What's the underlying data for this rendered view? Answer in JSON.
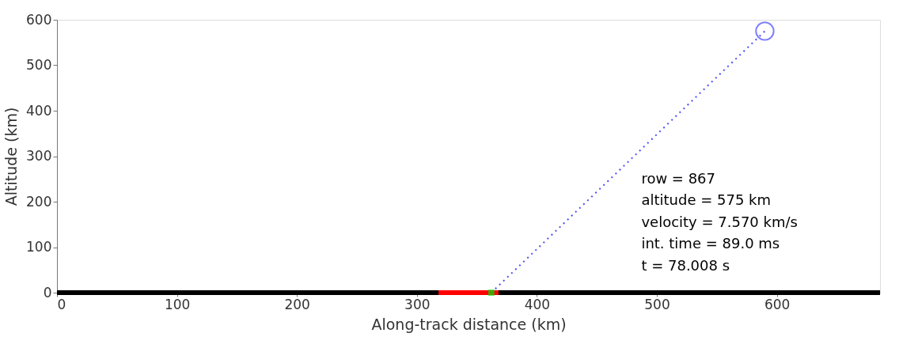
{
  "chart_data": {
    "type": "line",
    "xlabel": "Along-track distance (km)",
    "ylabel": "Altitude (km)",
    "xlim": [
      0,
      686
    ],
    "ylim": [
      0,
      600
    ],
    "xticks": [
      0,
      100,
      200,
      300,
      400,
      500,
      600
    ],
    "yticks": [
      0,
      100,
      200,
      300,
      400,
      500,
      600
    ],
    "grid": false,
    "legend": false,
    "series": [
      {
        "color": "#000000",
        "x": [
          0,
          686
        ],
        "values": [
          0,
          0
        ],
        "line_style": "solid",
        "marker": "none"
      },
      {
        "color": "#ff0000",
        "x": [
          318,
          368
        ],
        "values": [
          0,
          0
        ],
        "line_style": "solid",
        "marker": "none"
      },
      {
        "color": "#4d4dff",
        "x": [
          362,
          590
        ],
        "values": [
          0,
          575
        ],
        "line_style": "dotted",
        "marker": "none"
      },
      {
        "type": "scatter",
        "color": "#4d4dff",
        "x": [
          590
        ],
        "values": [
          575
        ],
        "marker": "circle"
      },
      {
        "type": "scatter",
        "color": "#00e000",
        "x": [
          362
        ],
        "values": [
          0
        ],
        "marker": "square"
      }
    ],
    "annotations": [
      "row = 867",
      "altitude = 575 km",
      "velocity = 7.570 km/s",
      "int. time = 89.0 ms",
      "t = 78.008 s"
    ]
  }
}
